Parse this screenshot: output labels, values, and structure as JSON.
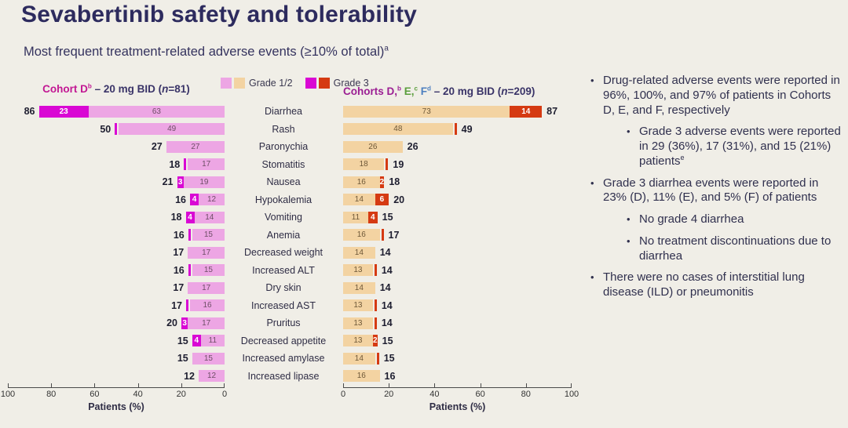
{
  "slide": {
    "title": "Sevabertinib safety and tolerability",
    "subtitle": "Most frequent treatment-related adverse events (≥10% of total)",
    "subtitle_sup": "a"
  },
  "legend": {
    "grade12_label": "Grade 1/2",
    "grade3_label": "Grade 3"
  },
  "left_header": {
    "cohort": "Cohort D",
    "cohort_sup": "b",
    "dose": " – 20 mg BID (",
    "n": "n",
    "n_rest": "=81)"
  },
  "right_header": {
    "prefix": "Cohorts D,",
    "sup_b": "b",
    "e": " E,",
    "sup_c": "c",
    "f": " F",
    "sup_d": "d",
    "dose": " – 20 mg BID (",
    "n": "n",
    "n_rest": "=209)"
  },
  "colors": {
    "background": "#F0EEE7",
    "title": "#2D2B5E",
    "grade12_left": "#EDA6E4",
    "grade3_left": "#D908D4",
    "grade12_right": "#F3D3A2",
    "grade3_right": "#D53A12",
    "grade12_left_text": "#6E4E66",
    "grade12_right_text": "#6E5838",
    "left_header": "#C21793",
    "cohort_d": "#9B1E93",
    "cohort_e": "#5A9E3C",
    "cohort_f": "#4C7FBF"
  },
  "chart_data": {
    "type": "bar",
    "subtype": "tornado-stacked-horizontal",
    "title": "Most frequent treatment-related adverse events (≥10% of total)",
    "categories": [
      "Diarrhea",
      "Rash",
      "Paronychia",
      "Stomatitis",
      "Nausea",
      "Hypokalemia",
      "Vomiting",
      "Anemia",
      "Decreased weight",
      "Increased ALT",
      "Dry skin",
      "Increased AST",
      "Pruritus",
      "Decreased appetite",
      "Increased amylase",
      "Increased lipase"
    ],
    "series": [
      {
        "name": "Cohort D – 20 mg BID (n=81)",
        "side": "left",
        "grade12": [
          63,
          49,
          27,
          17,
          19,
          12,
          14,
          15,
          17,
          15,
          17,
          16,
          17,
          11,
          15,
          12
        ],
        "grade3": [
          23,
          1,
          0,
          1,
          3,
          4,
          4,
          1,
          0,
          1,
          0,
          1,
          3,
          4,
          0,
          0
        ],
        "totals": [
          86,
          50,
          27,
          18,
          21,
          16,
          18,
          16,
          17,
          16,
          17,
          17,
          20,
          15,
          15,
          12
        ]
      },
      {
        "name": "Cohorts D, E, F – 20 mg BID (n=209)",
        "side": "right",
        "grade12": [
          73,
          48,
          26,
          18,
          16,
          14,
          11,
          16,
          14,
          13,
          14,
          13,
          13,
          13,
          14,
          16
        ],
        "grade3": [
          14,
          1,
          0,
          1,
          2,
          6,
          4,
          1,
          0,
          1,
          0,
          1,
          1,
          2,
          1,
          0
        ],
        "totals": [
          87,
          49,
          26,
          19,
          18,
          20,
          15,
          17,
          14,
          14,
          14,
          14,
          14,
          15,
          15,
          16
        ]
      }
    ],
    "legend_entries": [
      "Grade 1/2",
      "Grade 3"
    ],
    "xlabel": "Patients (%)",
    "x_ticks": [
      0,
      20,
      40,
      60,
      80,
      100
    ],
    "xlim": [
      0,
      100
    ],
    "grid": false
  },
  "bullets": [
    {
      "level": 1,
      "text": "Drug-related adverse events were reported in 96%, 100%, and 97% of patients in Cohorts D, E, and F, respectively"
    },
    {
      "level": 2,
      "text": "Grade 3 adverse events were reported in 29 (36%), 17 (31%), and 15 (21%) patients",
      "sup": "e"
    },
    {
      "level": 1,
      "text": "Grade 3 diarrhea events were reported in 23% (D), 11% (E), and 5% (F) of patients"
    },
    {
      "level": 2,
      "text": "No grade 4 diarrhea"
    },
    {
      "level": 2,
      "text": "No treatment discontinuations due to diarrhea"
    },
    {
      "level": 1,
      "text": "There were no cases of interstitial lung disease (ILD) or pneumonitis"
    }
  ]
}
